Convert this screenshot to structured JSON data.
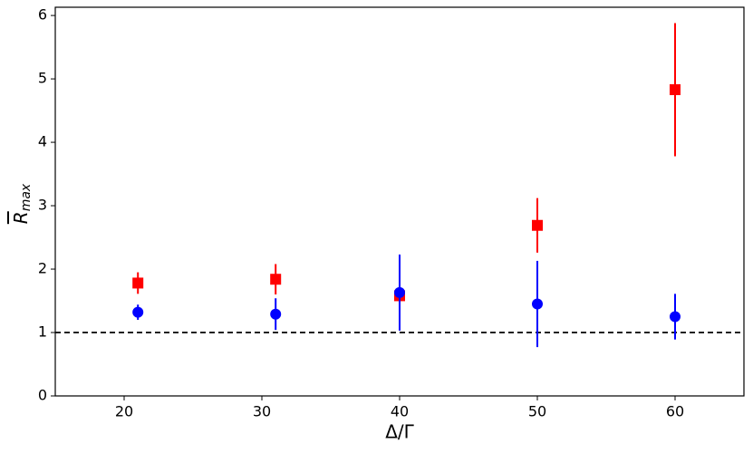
{
  "chart_data": {
    "type": "scatter",
    "x": [
      21,
      31,
      40,
      50,
      60
    ],
    "series": [
      {
        "color": "#ff0000",
        "marker": "square",
        "values": [
          1.78,
          1.84,
          1.58,
          2.69,
          4.83
        ],
        "errors": [
          0.17,
          0.24,
          0.05,
          0.43,
          1.05
        ]
      },
      {
        "color": "#0000ff",
        "marker": "circle",
        "values": [
          1.32,
          1.29,
          1.63,
          1.45,
          1.25
        ],
        "errors": [
          0.12,
          0.25,
          0.6,
          0.68,
          0.36
        ]
      }
    ],
    "reference_line": {
      "y": 1,
      "color": "#000000",
      "dashed": true
    },
    "xlabel": "Δ/Γ",
    "ylabel": {
      "text": "R",
      "subscript": "max"
    },
    "xlim": [
      15,
      65
    ],
    "ylim": [
      0,
      6.13
    ],
    "xticks": [
      20,
      30,
      40,
      50,
      60
    ],
    "yticks": [
      0,
      1,
      2,
      3,
      4,
      5,
      6
    ],
    "grid": false
  }
}
